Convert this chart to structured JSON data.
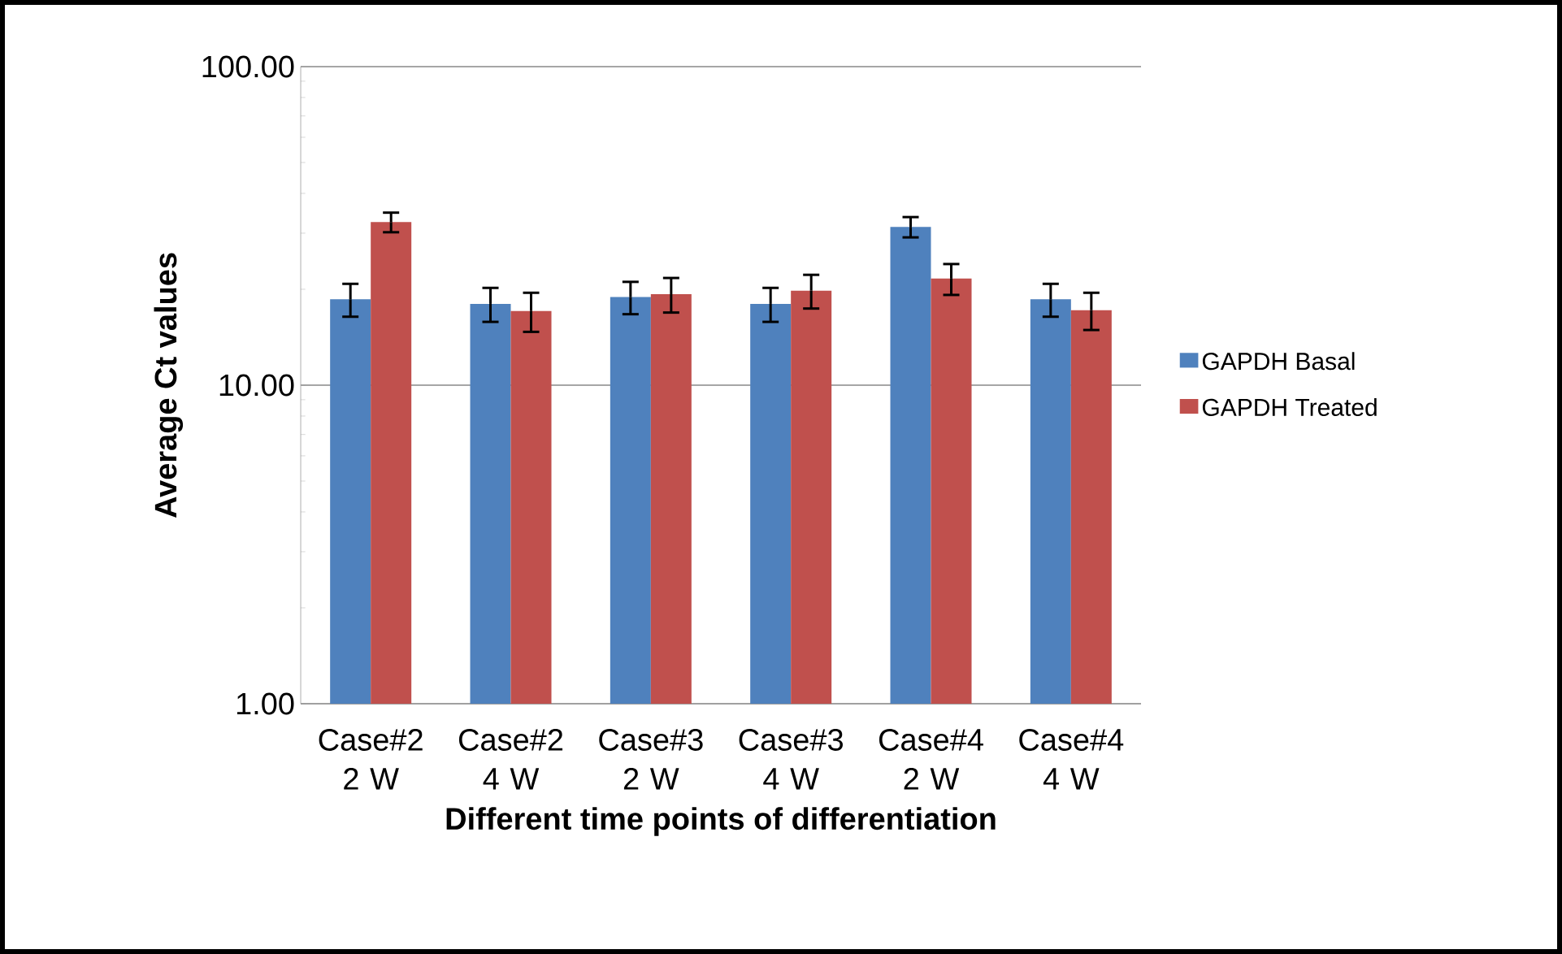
{
  "chart_data": {
    "type": "bar",
    "xlabel": "Different time points of differentiation",
    "ylabel": "Average Ct values",
    "categories": [
      "Case#2 2 W",
      "Case#2 4 W",
      "Case#3 2 W",
      "Case#3 4 W",
      "Case#4 2 W",
      "Case#4 4 W"
    ],
    "series": [
      {
        "name": "GAPDH Basal",
        "color": "#4f81bd",
        "values": [
          18.6,
          18.0,
          18.9,
          18.0,
          31.4,
          18.6
        ],
        "errors": [
          2.2,
          2.2,
          2.2,
          2.2,
          2.3,
          2.2
        ]
      },
      {
        "name": "GAPDH Treated",
        "color": "#c0504d",
        "values": [
          32.5,
          17.1,
          19.3,
          19.8,
          21.6,
          17.2
        ],
        "errors": [
          2.3,
          2.4,
          2.4,
          2.4,
          2.4,
          2.3
        ]
      }
    ],
    "log": "y",
    "ylim": [
      1,
      100
    ],
    "yticks": [
      {
        "value": 1,
        "label": "1.00"
      },
      {
        "value": 10,
        "label": "10.00"
      },
      {
        "value": 100,
        "label": "100.00"
      }
    ],
    "grid": "y",
    "legend": "right"
  }
}
